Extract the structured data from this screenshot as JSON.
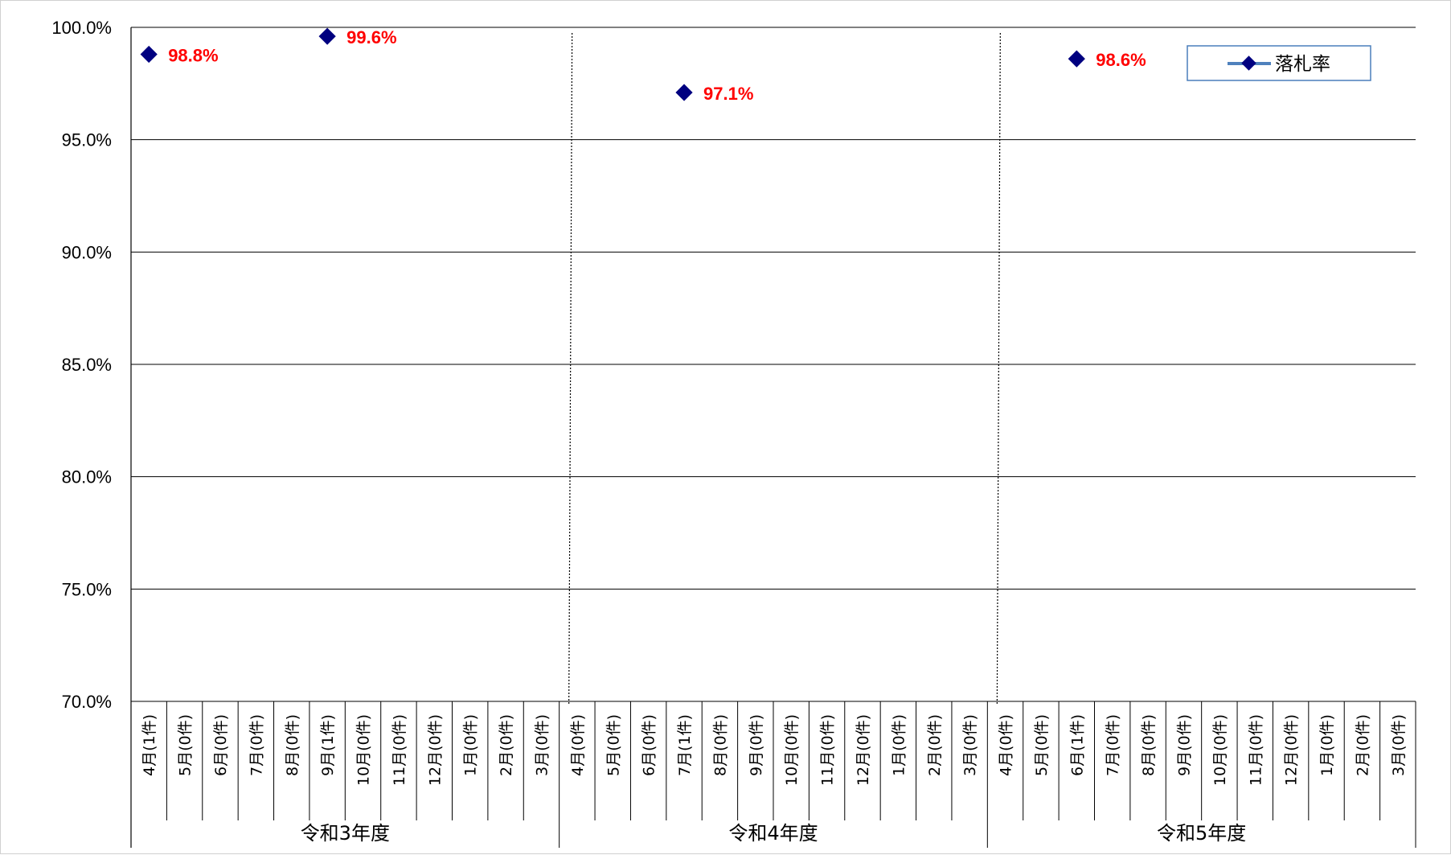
{
  "chart_data": {
    "type": "scatter",
    "ylim": [
      70.0,
      100.0
    ],
    "yticks": [
      "100.0%",
      "95.0%",
      "90.0%",
      "85.0%",
      "80.0%",
      "75.0%",
      "70.0%"
    ],
    "groups": [
      "令和3年度",
      "令和4年度",
      "令和5年度"
    ],
    "categories": [
      "4月(1件)",
      "5月(0件)",
      "6月(0件)",
      "7月(0件)",
      "8月(0件)",
      "9月(1件)",
      "10月(0件)",
      "11月(0件)",
      "12月(0件)",
      "1月(0件)",
      "2月(0件)",
      "3月(0件)",
      "4月(0件)",
      "5月(0件)",
      "6月(0件)",
      "7月(1件)",
      "8月(0件)",
      "9月(0件)",
      "10月(0件)",
      "11月(0件)",
      "12月(0件)",
      "1月(0件)",
      "2月(0件)",
      "3月(0件)",
      "4月(0件)",
      "5月(0件)",
      "6月(1件)",
      "7月(0件)",
      "8月(0件)",
      "9月(0件)",
      "10月(0件)",
      "11月(0件)",
      "12月(0件)",
      "1月(0件)",
      "2月(0件)",
      "3月(0件)"
    ],
    "series": [
      {
        "name": "落札率",
        "color": "#000080",
        "label_color": "#ff0000",
        "points": [
          {
            "category_index": 0,
            "value": 98.8,
            "label": "98.8%"
          },
          {
            "category_index": 5,
            "value": 99.6,
            "label": "99.6%"
          },
          {
            "category_index": 15,
            "value": 97.1,
            "label": "97.1%"
          },
          {
            "category_index": 26,
            "value": 98.6,
            "label": "98.6%"
          }
        ]
      }
    ],
    "grid": true,
    "legend_position": "top-right"
  }
}
